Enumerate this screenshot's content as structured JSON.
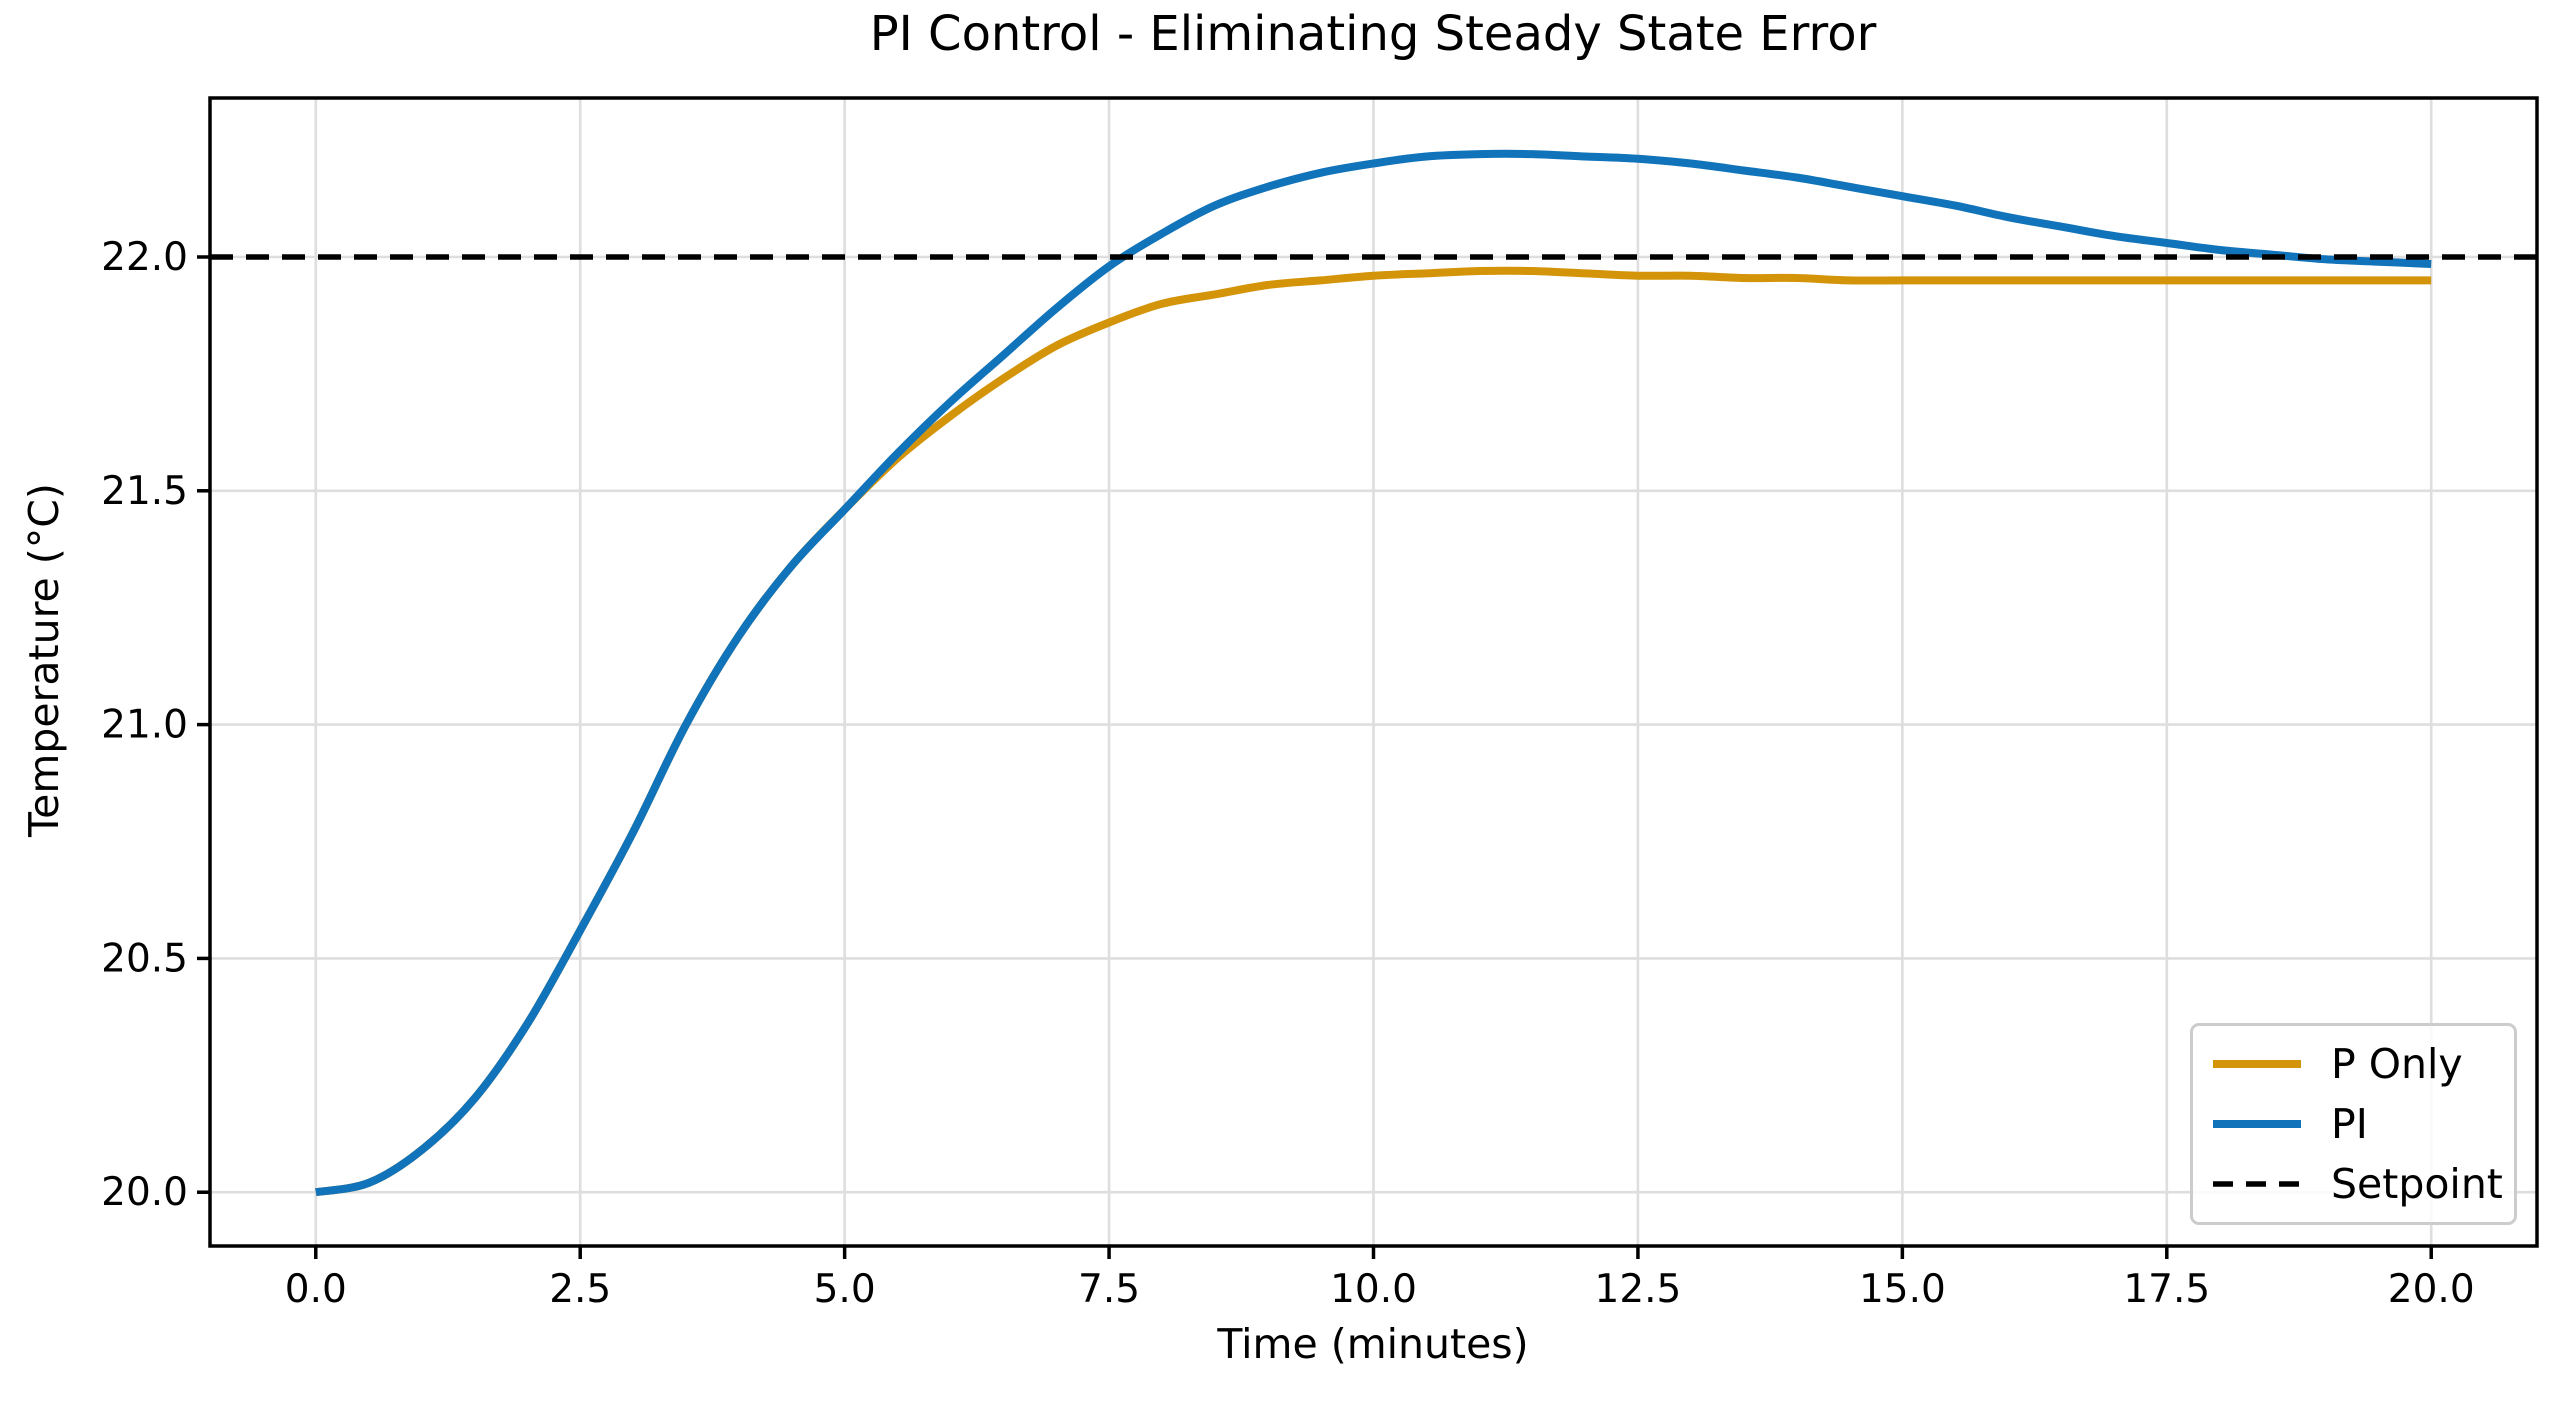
{
  "chart_data": {
    "type": "line",
    "title": "PI Control - Eliminating Steady State Error",
    "xlabel": "Time (minutes)",
    "ylabel": "Temperature (°C)",
    "xlim": [
      -1,
      21
    ],
    "ylim": [
      19.885,
      22.34
    ],
    "x_ticks": [
      0,
      2.5,
      5,
      7.5,
      10,
      12.5,
      15,
      17.5,
      20
    ],
    "x_tick_labels": [
      "0.0",
      "2.5",
      "5.0",
      "7.5",
      "10.0",
      "12.5",
      "15.0",
      "17.5",
      "20.0"
    ],
    "y_ticks": [
      20,
      20.5,
      21,
      21.5,
      22
    ],
    "y_tick_labels": [
      "20.0",
      "20.5",
      "21.0",
      "21.5",
      "22.0"
    ],
    "grid": true,
    "grid_color": "#dedede",
    "spine_color": "#000000",
    "legend_position": "lower right",
    "setpoint_value": 22.0,
    "series": [
      {
        "name": "P Only",
        "color": "#d4940a",
        "style": "solid",
        "width": 8,
        "x": [
          0,
          0.5,
          1,
          1.5,
          2,
          2.5,
          3,
          3.5,
          4,
          4.5,
          5,
          5.5,
          6,
          6.5,
          7,
          7.5,
          8,
          8.5,
          9,
          9.5,
          10,
          10.5,
          11,
          11.5,
          12,
          12.5,
          13,
          13.5,
          14,
          14.5,
          15,
          15.5,
          16,
          16.5,
          17,
          17.5,
          18,
          18.5,
          19,
          19.5,
          20
        ],
        "y": [
          20.0,
          20.02,
          20.09,
          20.2,
          20.36,
          20.56,
          20.77,
          21.0,
          21.19,
          21.34,
          21.46,
          21.57,
          21.66,
          21.74,
          21.81,
          21.86,
          21.9,
          21.92,
          21.94,
          21.95,
          21.96,
          21.965,
          21.97,
          21.97,
          21.965,
          21.96,
          21.96,
          21.955,
          21.955,
          21.95,
          21.95,
          21.95,
          21.95,
          21.95,
          21.95,
          21.95,
          21.95,
          21.95,
          21.95,
          21.95,
          21.95
        ]
      },
      {
        "name": "PI",
        "color": "#1173b9",
        "style": "solid",
        "width": 8,
        "x": [
          0,
          0.5,
          1,
          1.5,
          2,
          2.5,
          3,
          3.5,
          4,
          4.5,
          5,
          5.5,
          6,
          6.5,
          7,
          7.5,
          8,
          8.5,
          9,
          9.5,
          10,
          10.5,
          11,
          11.5,
          12,
          12.5,
          13,
          13.5,
          14,
          14.5,
          15,
          15.5,
          16,
          16.5,
          17,
          17.5,
          18,
          18.5,
          19,
          19.5,
          20
        ],
        "y": [
          20.0,
          20.02,
          20.09,
          20.2,
          20.36,
          20.56,
          20.77,
          21.0,
          21.19,
          21.34,
          21.46,
          21.58,
          21.69,
          21.79,
          21.89,
          21.98,
          22.05,
          22.11,
          22.15,
          22.18,
          22.2,
          22.215,
          22.22,
          22.22,
          22.215,
          22.21,
          22.2,
          22.185,
          22.17,
          22.15,
          22.13,
          22.11,
          22.085,
          22.065,
          22.045,
          22.03,
          22.015,
          22.005,
          21.995,
          21.99,
          21.985
        ]
      },
      {
        "name": "Setpoint",
        "color": "#000000",
        "style": "dashed",
        "width": 5.5,
        "dash": "23 13",
        "x": [
          -1,
          21
        ],
        "y": [
          22.0,
          22.0
        ]
      }
    ]
  }
}
